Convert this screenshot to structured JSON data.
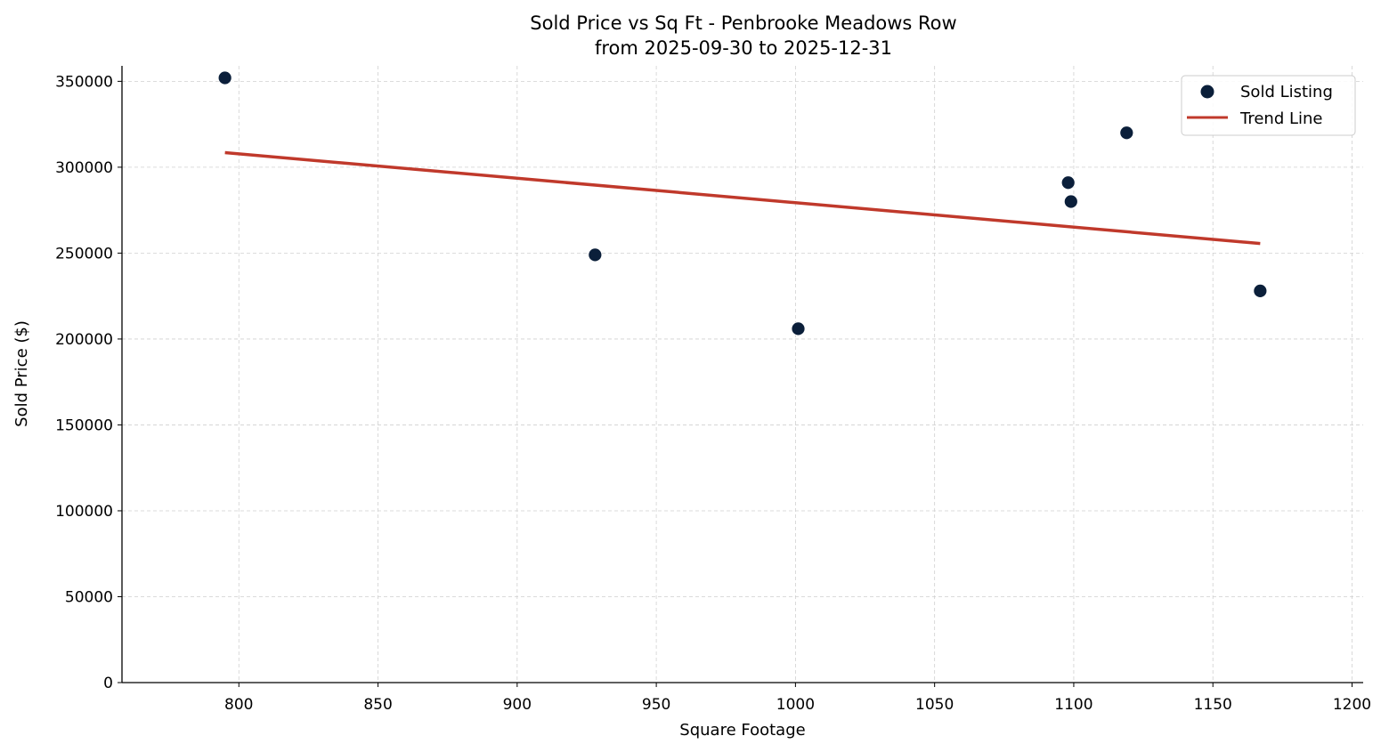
{
  "chart_data": {
    "type": "scatter",
    "title": "Sold Price vs Sq Ft - Penbrooke Meadows Row",
    "subtitle": "from 2025-09-30 to 2025-12-31",
    "xlabel": "Square Footage",
    "ylabel": "Sold Price ($)",
    "xlim": [
      758,
      1204
    ],
    "ylim": [
      0,
      359000
    ],
    "xticks": [
      800,
      850,
      900,
      950,
      1000,
      1050,
      1100,
      1150,
      1200
    ],
    "yticks": [
      0,
      50000,
      100000,
      150000,
      200000,
      250000,
      300000,
      350000
    ],
    "grid": true,
    "legend_position": "top-right",
    "series": [
      {
        "name": "Sold Listing",
        "kind": "scatter",
        "color": "#0b1f3a",
        "x": [
          795,
          928,
          1001,
          1098,
          1099,
          1119,
          1167
        ],
        "y": [
          352000,
          249000,
          206000,
          291000,
          280000,
          320000,
          228000
        ]
      },
      {
        "name": "Trend Line",
        "kind": "line",
        "color": "#c0392b",
        "x": [
          795,
          1167
        ],
        "y": [
          308500,
          255600
        ]
      }
    ]
  }
}
